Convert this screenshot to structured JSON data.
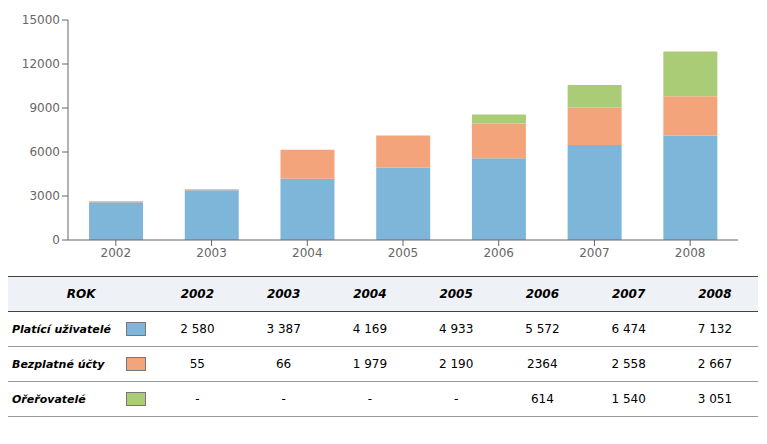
{
  "chart_data": {
    "type": "bar",
    "stacked": true,
    "xlabel": "ROK",
    "categories": [
      "2002",
      "2003",
      "2004",
      "2005",
      "2006",
      "2007",
      "2008"
    ],
    "series": [
      {
        "name": "Platící uživatelé",
        "color": "#7EB6D9",
        "values": [
          2580,
          3387,
          4169,
          4933,
          5572,
          6474,
          7132
        ],
        "value_labels": [
          "2 580",
          "3 387",
          "4 169",
          "4 933",
          "5 572",
          "6 474",
          "7 132"
        ]
      },
      {
        "name": "Bezplatné účty",
        "color": "#F4A47A",
        "values": [
          55,
          66,
          1979,
          2190,
          2364,
          2558,
          2667
        ],
        "value_labels": [
          "55",
          "66",
          "1 979",
          "2 190",
          "2364",
          "2 558",
          "2 667"
        ]
      },
      {
        "name": "Ořeřovatelé",
        "color": "#AACC77",
        "values": [
          0,
          0,
          0,
          0,
          614,
          1540,
          3051
        ],
        "value_labels": [
          "-",
          "-",
          "-",
          "-",
          "614",
          "1 540",
          "3 051"
        ]
      }
    ],
    "ylim": [
      0,
      15000
    ],
    "yticks": [
      0,
      3000,
      6000,
      9000,
      12000,
      15000
    ],
    "grid": false
  }
}
